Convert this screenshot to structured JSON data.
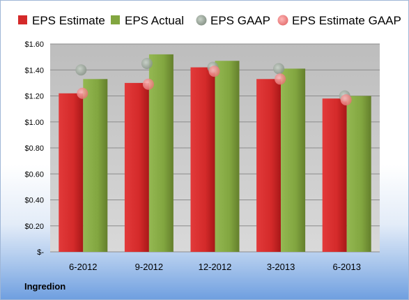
{
  "company": "Ingredion",
  "colors": {
    "eps_estimate": "#d42a2a",
    "eps_actual": "#82a640",
    "eps_gaap": "#9aa89a",
    "eps_estimate_gaap": "#f08a8a",
    "plot_bg": "#c8c8c8"
  },
  "chart_data": {
    "type": "bar",
    "title": "",
    "xlabel": "",
    "ylabel": "",
    "legend_placement": "top",
    "grid": true,
    "ylim": [
      0,
      1.6
    ],
    "yticks": [
      0,
      0.2,
      0.4,
      0.6,
      0.8,
      1.0,
      1.2,
      1.4,
      1.6
    ],
    "ytick_labels": [
      "$-",
      "$0.20",
      "$0.40",
      "$0.60",
      "$0.80",
      "$1.00",
      "$1.20",
      "$1.40",
      "$1.60"
    ],
    "categories": [
      "6-2012",
      "9-2012",
      "12-2012",
      "3-2013",
      "6-2013"
    ],
    "series": [
      {
        "name": "EPS Estimate",
        "kind": "bar",
        "color_key": "eps_estimate",
        "values": [
          1.22,
          1.3,
          1.42,
          1.33,
          1.18
        ]
      },
      {
        "name": "EPS Actual",
        "kind": "bar",
        "color_key": "eps_actual",
        "values": [
          1.33,
          1.52,
          1.47,
          1.41,
          1.2
        ]
      },
      {
        "name": "EPS GAAP",
        "kind": "point",
        "color_key": "eps_gaap",
        "values": [
          1.4,
          1.45,
          1.42,
          1.41,
          1.2
        ]
      },
      {
        "name": "EPS Estimate GAAP",
        "kind": "point",
        "color_key": "eps_estimate_gaap",
        "values": [
          1.22,
          1.29,
          1.39,
          1.33,
          1.17
        ]
      }
    ]
  }
}
